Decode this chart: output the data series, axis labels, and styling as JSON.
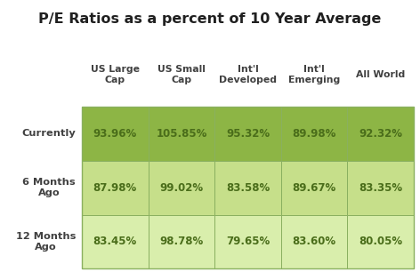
{
  "title": "P/E Ratios as a percent of 10 Year Average",
  "col_headers": [
    "US Large\nCap",
    "US Small\nCap",
    "Int'l\nDeveloped",
    "Int'l\nEmerging",
    "All World"
  ],
  "row_headers": [
    "Currently",
    "6 Months\nAgo",
    "12 Months\nAgo"
  ],
  "values": [
    [
      "93.96%",
      "105.85%",
      "95.32%",
      "89.98%",
      "92.32%"
    ],
    [
      "87.98%",
      "99.02%",
      "83.58%",
      "89.67%",
      "83.35%"
    ],
    [
      "83.45%",
      "98.78%",
      "79.65%",
      "83.60%",
      "80.05%"
    ]
  ],
  "row_colors": [
    "#8db545",
    "#c6df8a",
    "#d9eeac"
  ],
  "cell_text_color": "#4a6d1a",
  "header_text_color": "#404040",
  "title_color": "#202020",
  "bg_color": "#ffffff",
  "border_color": "#8ab060",
  "title_fontsize": 11.5,
  "header_fontsize": 7.8,
  "cell_fontsize": 8.5,
  "row_header_fontsize": 8.2
}
